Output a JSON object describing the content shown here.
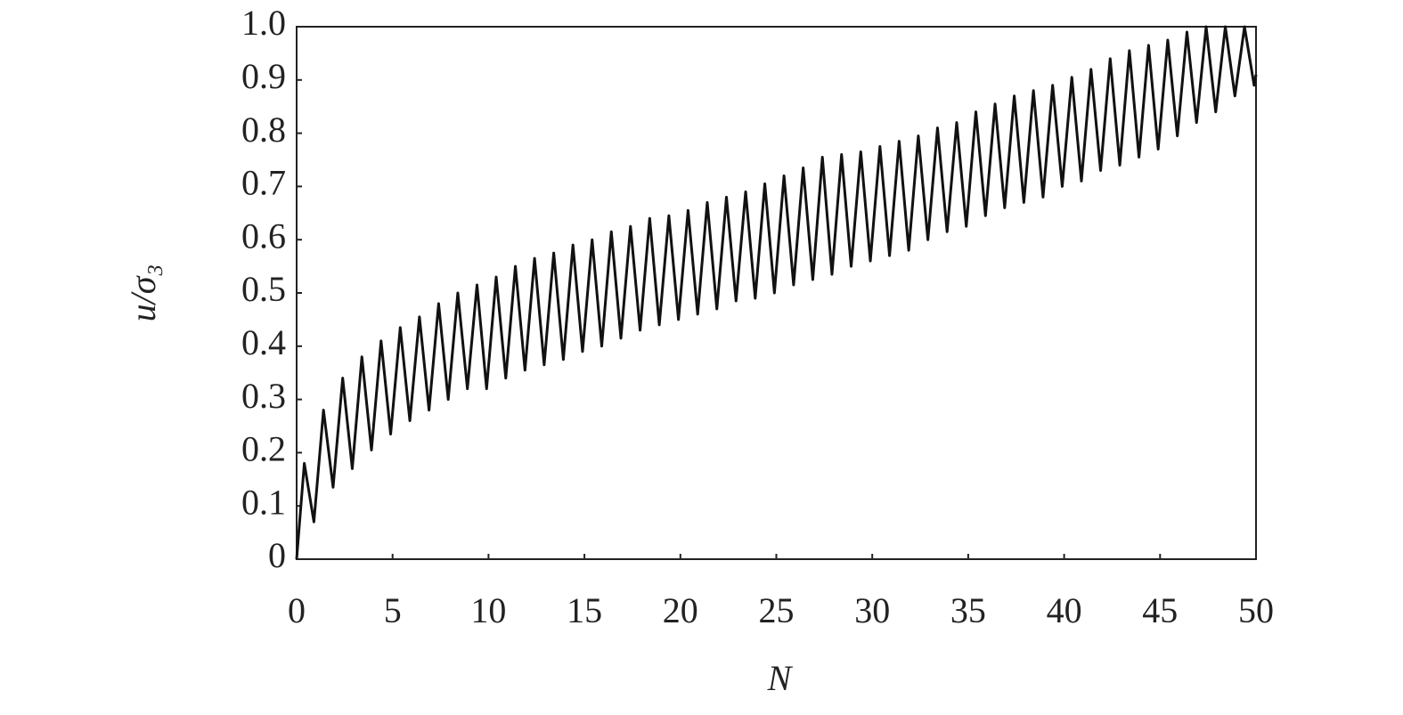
{
  "chart_data": {
    "type": "line",
    "x_label": "N",
    "y_label": "u/σ₃",
    "color": "#111111",
    "x": [
      0,
      0.4,
      0.9,
      1.4,
      1.9,
      2.4,
      2.9,
      3.4,
      3.9,
      4.4,
      4.9,
      5.4,
      5.9,
      6.4,
      6.9,
      7.4,
      7.9,
      8.4,
      8.9,
      9.4,
      9.9,
      10.4,
      10.9,
      11.4,
      11.9,
      12.4,
      12.9,
      13.4,
      13.9,
      14.4,
      14.9,
      15.4,
      15.9,
      16.4,
      16.9,
      17.4,
      17.9,
      18.4,
      18.9,
      19.4,
      19.9,
      20.4,
      20.9,
      21.4,
      21.9,
      22.4,
      22.9,
      23.4,
      23.9,
      24.4,
      24.9,
      25.4,
      25.9,
      26.4,
      26.9,
      27.4,
      27.9,
      28.4,
      28.9,
      29.4,
      29.9,
      30.4,
      30.9,
      31.4,
      31.9,
      32.4,
      32.9,
      33.4,
      33.9,
      34.4,
      34.9,
      35.4,
      35.9,
      36.4,
      36.9,
      37.4,
      37.9,
      38.4,
      38.9,
      39.4,
      39.9,
      40.4,
      40.9,
      41.4,
      41.9,
      42.4,
      42.9,
      43.4,
      43.9,
      44.4,
      44.9,
      45.4,
      45.9,
      46.4,
      46.9,
      47.4,
      47.9,
      48.4,
      48.9,
      49.4,
      49.9,
      50
    ],
    "values": [
      0,
      0.18,
      0.07,
      0.28,
      0.135,
      0.34,
      0.17,
      0.38,
      0.205,
      0.41,
      0.235,
      0.435,
      0.26,
      0.455,
      0.28,
      0.48,
      0.3,
      0.5,
      0.32,
      0.515,
      0.32,
      0.53,
      0.34,
      0.55,
      0.355,
      0.565,
      0.365,
      0.575,
      0.375,
      0.59,
      0.39,
      0.6,
      0.4,
      0.615,
      0.415,
      0.625,
      0.43,
      0.64,
      0.44,
      0.645,
      0.45,
      0.655,
      0.46,
      0.67,
      0.47,
      0.68,
      0.485,
      0.69,
      0.49,
      0.705,
      0.5,
      0.72,
      0.515,
      0.735,
      0.525,
      0.755,
      0.535,
      0.76,
      0.55,
      0.765,
      0.56,
      0.775,
      0.57,
      0.785,
      0.58,
      0.795,
      0.6,
      0.81,
      0.615,
      0.82,
      0.625,
      0.84,
      0.645,
      0.855,
      0.66,
      0.87,
      0.67,
      0.88,
      0.68,
      0.89,
      0.7,
      0.905,
      0.71,
      0.92,
      0.73,
      0.94,
      0.74,
      0.955,
      0.755,
      0.965,
      0.77,
      0.975,
      0.795,
      0.99,
      0.82,
      1,
      0.84,
      1,
      0.87,
      1,
      0.89,
      0.91
    ],
    "xlim": [
      0,
      50
    ],
    "xticks": [
      0,
      5,
      10,
      15,
      20,
      25,
      30,
      35,
      40,
      45,
      50
    ],
    "ylim": [
      0,
      1
    ],
    "yticks": [
      0,
      0.1,
      0.2,
      0.3,
      0.4,
      0.5,
      0.6,
      0.7,
      0.8,
      0.9,
      {
        "value": 1,
        "label": "1.0"
      }
    ]
  }
}
